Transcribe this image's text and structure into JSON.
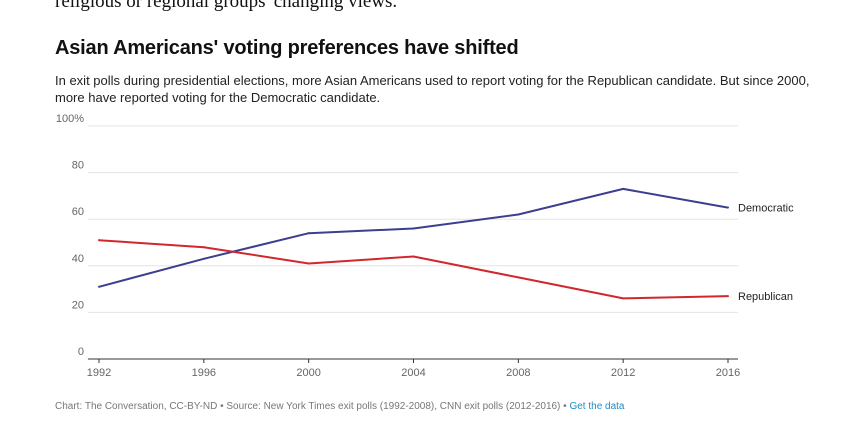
{
  "article": {
    "tail_text": "religious or regional groups' changing views."
  },
  "chart_data": {
    "type": "line",
    "title": "Asian Americans' voting preferences have shifted",
    "subtitle": "In exit polls during presidential elections, more Asian Americans used to report voting for the Republican candidate. But since 2000, more have reported voting for the Democratic candidate.",
    "x": [
      "1992",
      "1996",
      "2000",
      "2004",
      "2008",
      "2012",
      "2016"
    ],
    "series": [
      {
        "name": "Democratic",
        "color": "#3b3f8f",
        "values": [
          31,
          43,
          54,
          56,
          62,
          73,
          65
        ]
      },
      {
        "name": "Republican",
        "color": "#d0282d",
        "values": [
          51,
          48,
          41,
          44,
          35,
          26,
          27
        ]
      }
    ],
    "ylim": [
      0,
      100
    ],
    "yticks": [
      0,
      20,
      40,
      60,
      80,
      100
    ],
    "ytick_labels": [
      "0",
      "20",
      "40",
      "60",
      "80",
      "100%"
    ],
    "xlabel": "",
    "ylabel": "",
    "grid": true,
    "legend": "inline-right"
  },
  "footer": {
    "credit": "Chart: The Conversation, CC-BY-ND • Source: New York Times exit polls (1992-2008), CNN exit polls (2012-2016) •",
    "data_link": "Get the data"
  }
}
